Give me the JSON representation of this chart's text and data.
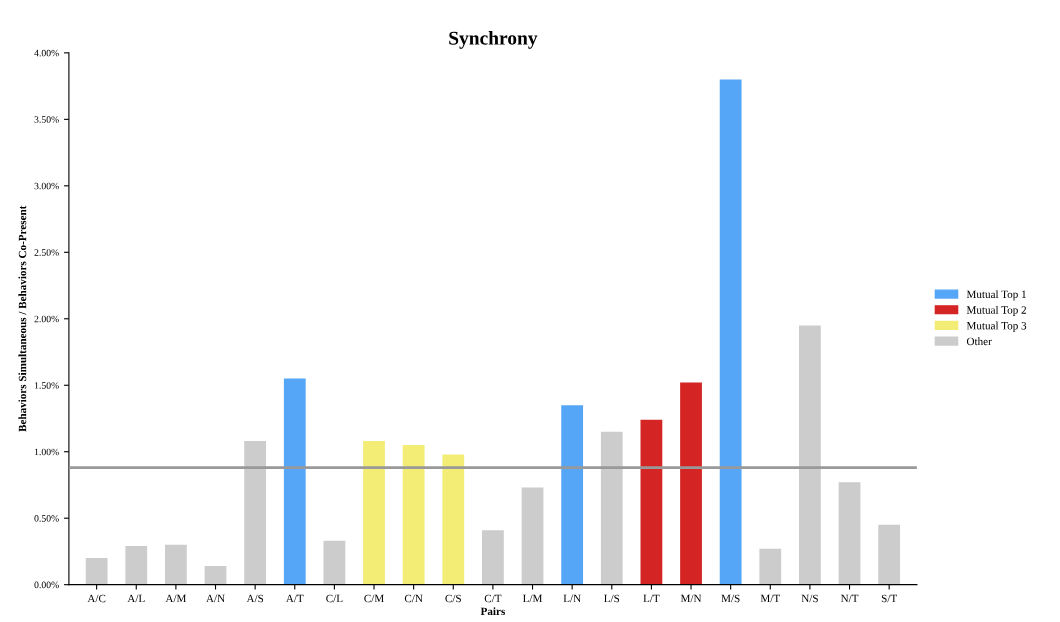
{
  "chart_data": {
    "type": "bar",
    "title": "Synchrony",
    "xlabel": "Pairs",
    "ylabel": "Behaviors Simultaneous / Behaviors Co-Present",
    "categories": [
      "A/C",
      "A/L",
      "A/M",
      "A/N",
      "A/S",
      "A/T",
      "C/L",
      "C/M",
      "C/N",
      "C/S",
      "C/T",
      "L/M",
      "L/N",
      "L/S",
      "L/T",
      "M/N",
      "M/S",
      "M/T",
      "N/S",
      "N/T",
      "S/T"
    ],
    "series": [
      {
        "name": "Mutual Top 1",
        "color": "#55a6f7",
        "values": [
          null,
          null,
          null,
          null,
          null,
          1.55,
          null,
          null,
          null,
          null,
          null,
          null,
          1.35,
          null,
          null,
          null,
          3.8,
          null,
          null,
          null,
          null
        ]
      },
      {
        "name": "Mutual Top 2",
        "color": "#d42424",
        "values": [
          null,
          null,
          null,
          null,
          null,
          null,
          null,
          null,
          null,
          null,
          null,
          null,
          null,
          null,
          1.24,
          1.52,
          null,
          null,
          null,
          null,
          null
        ]
      },
      {
        "name": "Mutual Top 3",
        "color": "#f3ec75",
        "values": [
          null,
          null,
          null,
          null,
          null,
          null,
          null,
          1.08,
          1.05,
          0.98,
          null,
          null,
          null,
          null,
          null,
          null,
          null,
          null,
          null,
          null,
          null
        ]
      },
      {
        "name": "Other",
        "color": "#cccccc",
        "values": [
          0.2,
          0.29,
          0.3,
          0.14,
          1.08,
          null,
          0.33,
          null,
          null,
          null,
          0.41,
          0.73,
          null,
          1.15,
          null,
          null,
          null,
          0.27,
          1.95,
          0.77,
          0.45
        ]
      }
    ],
    "ylim": [
      0,
      4
    ],
    "yticks": [
      {
        "value": 0,
        "label": "0.00%"
      },
      {
        "value": 0.5,
        "label": "0.50%"
      },
      {
        "value": 1,
        "label": "1.00%"
      },
      {
        "value": 1.5,
        "label": "1.50%"
      },
      {
        "value": 2,
        "label": "2.00%"
      },
      {
        "value": 2.5,
        "label": "2.50%"
      },
      {
        "value": 3,
        "label": "3.00%"
      },
      {
        "value": 3.5,
        "label": "3.50%"
      },
      {
        "value": 4,
        "label": "4.00%"
      }
    ],
    "ref_lines": [
      {
        "axis": "y",
        "value": 0.88,
        "color": "#999999"
      }
    ],
    "legend": "right",
    "grid": false
  }
}
